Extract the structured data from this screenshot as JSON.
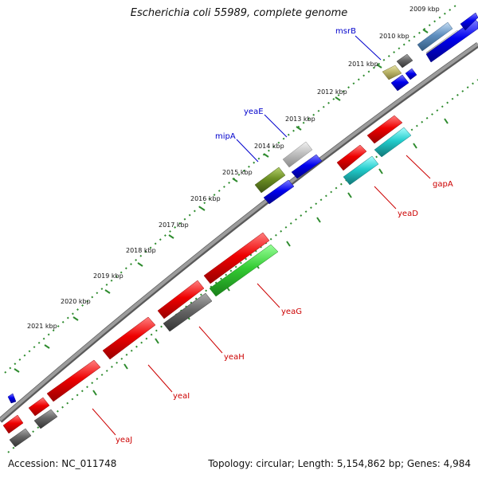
{
  "title": "Escherichia coli 55989, complete genome",
  "footer": {
    "accession": "Accession: NC_011748",
    "summary": "Topology: circular; Length: 5,154,862 bp; Genes: 4,984"
  },
  "kbp_ticks": [
    "2009 kbp",
    "2010 kbp",
    "2011 kbp",
    "2012 kbp",
    "2013 kbp",
    "2014 kbp",
    "2015 kbp",
    "2016 kbp",
    "2017 kbp",
    "2018 kbp",
    "2019 kbp",
    "2020 kbp",
    "2021 kbp"
  ],
  "gene_labels": {
    "msrB": "msrB",
    "yeaE": "yeaE",
    "mipA": "mipA",
    "gapA": "gapA",
    "yeaD": "yeaD",
    "yeaG": "yeaG",
    "yeaH": "yeaH",
    "yeaI": "yeaI",
    "yeaJ": "yeaJ"
  },
  "colors": {
    "backbone": "#8c8c8c",
    "grid_dots": "#2e8b2e",
    "forward_label": "#0000cc",
    "reverse_label": "#cc0000",
    "red_gene": "#ee0000",
    "blue_gene": "#0000ee",
    "gray_gene": "#666666",
    "green_gene": "#33cc33",
    "cyan_gene": "#22cccc",
    "olive_gene": "#6b8e23",
    "khaki_gene": "#bdb76b",
    "silver_gene": "#c0c0c0",
    "steel_gene": "#5f8fbf"
  }
}
